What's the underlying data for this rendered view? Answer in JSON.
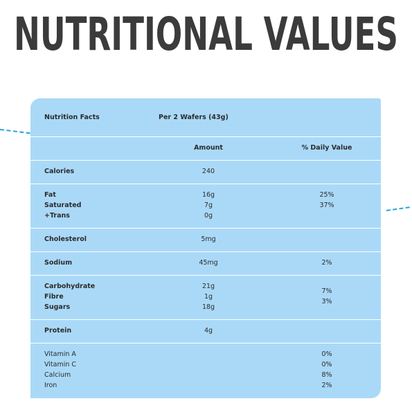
{
  "title": "NUTRITIONAL VALUES",
  "table": {
    "header": {
      "label": "Nutrition Facts",
      "serving": "Per 2 Wafers (43g)"
    },
    "columns": [
      "Amount",
      "% Daily Value"
    ],
    "rows": [
      {
        "names": [
          "Calories"
        ],
        "amounts": [
          "240"
        ]
      },
      {
        "names": [
          "Fat",
          "Saturated",
          "+Trans"
        ],
        "amounts": [
          "16g",
          "7g",
          "0g"
        ],
        "daily": [
          "25%",
          "37%"
        ]
      },
      {
        "names": [
          "Cholesterol"
        ],
        "amounts": [
          "5mg"
        ]
      },
      {
        "names": [
          "Sodium"
        ],
        "amounts": [
          "45mg"
        ],
        "daily": [
          "2%"
        ]
      },
      {
        "names": [
          "Carbohydrate",
          "Fibre",
          "Sugars"
        ],
        "amounts": [
          "21g",
          "1g",
          "18g"
        ],
        "daily": [
          "7%",
          "3%"
        ]
      },
      {
        "names": [
          "Protein"
        ],
        "amounts": [
          "4g"
        ]
      },
      {
        "names": [
          "Vitamin A",
          "Vitamin C",
          "Calcium",
          "Iron"
        ],
        "daily": [
          "0%",
          "0%",
          "8%",
          "2%"
        ]
      }
    ]
  }
}
